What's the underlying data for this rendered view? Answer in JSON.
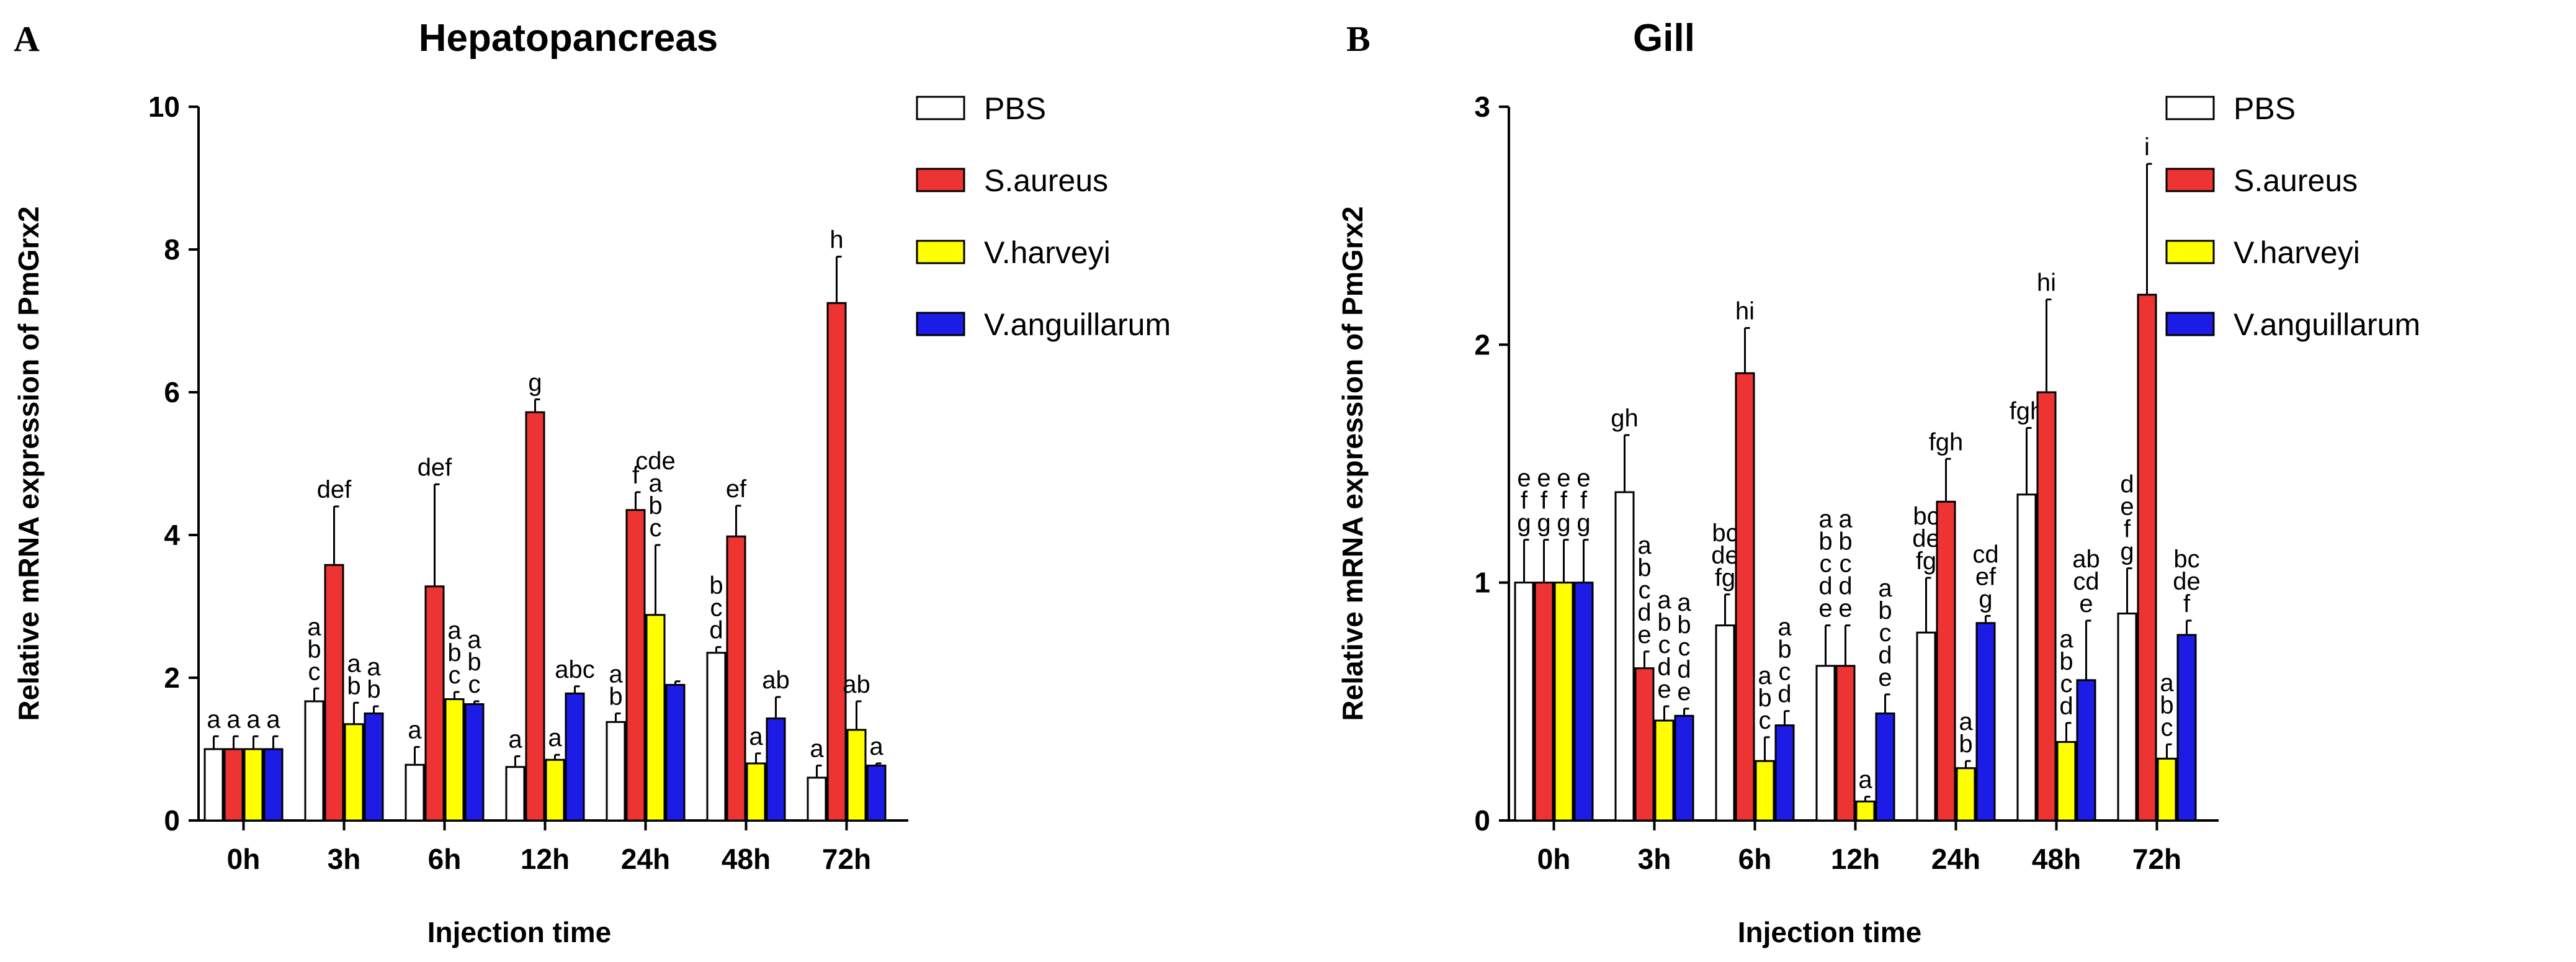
{
  "chart_data": [
    {
      "panel": "A",
      "type": "bar",
      "title": "Hepatopancreas",
      "xlabel": "Injection time",
      "ylabel": "Relative mRNA expression of PmGrx2",
      "ylim": [
        0,
        10
      ],
      "yticks": [
        0,
        2,
        4,
        6,
        8,
        10
      ],
      "categories": [
        "0h",
        "3h",
        "6h",
        "12h",
        "24h",
        "48h",
        "72h"
      ],
      "legend": "top-right",
      "series": [
        {
          "name": "PBS",
          "color": "#ffffff",
          "values": [
            1.0,
            1.67,
            0.78,
            0.75,
            1.38,
            2.35,
            0.6
          ],
          "errors": [
            0.18,
            0.18,
            0.25,
            0.15,
            0.12,
            0.08,
            0.17
          ],
          "labels": [
            [
              "a"
            ],
            [
              "a",
              "b",
              "c"
            ],
            [
              "a"
            ],
            [
              "a"
            ],
            [
              "a",
              "b"
            ],
            [
              "b",
              "c",
              "d"
            ],
            [
              "a"
            ]
          ]
        },
        {
          "name": "S.aureus",
          "color": "#ee3333",
          "values": [
            1.0,
            3.58,
            3.28,
            5.72,
            4.35,
            3.98,
            7.25
          ],
          "errors": [
            0.18,
            0.82,
            1.43,
            0.18,
            0.25,
            0.43,
            0.65
          ],
          "labels": [
            [
              "a"
            ],
            [
              "def"
            ],
            [
              "def"
            ],
            [
              "g"
            ],
            [
              "f"
            ],
            [
              "ef"
            ],
            [
              "h"
            ]
          ]
        },
        {
          "name": "V.harveyi",
          "color": "#ffff00",
          "values": [
            1.0,
            1.35,
            1.7,
            0.85,
            2.88,
            0.8,
            1.27
          ],
          "errors": [
            0.18,
            0.3,
            0.1,
            0.07,
            0.98,
            0.14,
            0.4
          ],
          "labels": [
            [
              "a"
            ],
            [
              "a",
              "b"
            ],
            [
              "a",
              "b",
              "c"
            ],
            [
              "a"
            ],
            [
              "cde",
              "a",
              "b",
              "c"
            ],
            [
              "a"
            ],
            [
              "ab"
            ]
          ]
        },
        {
          "name": "V.anguillarum",
          "color": "#1c1ce6",
          "values": [
            1.0,
            1.5,
            1.63,
            1.78,
            1.9,
            1.43,
            0.77
          ],
          "errors": [
            0.18,
            0.1,
            0.04,
            0.1,
            0.05,
            0.3,
            0.03
          ],
          "labels": [
            [
              "a"
            ],
            [
              "a",
              "b"
            ],
            [
              "a",
              "b",
              "c"
            ],
            [
              "abc"
            ],
            [],
            [
              "ab"
            ],
            [
              "a"
            ]
          ]
        }
      ]
    },
    {
      "panel": "B",
      "type": "bar",
      "title": "Gill",
      "xlabel": "Injection time",
      "ylabel": "Relative mRNA expression of PmGrx2",
      "ylim": [
        0,
        3
      ],
      "yticks": [
        0,
        1,
        2,
        3
      ],
      "categories": [
        "0h",
        "3h",
        "6h",
        "12h",
        "24h",
        "48h",
        "72h"
      ],
      "legend": "top-right",
      "series": [
        {
          "name": "PBS",
          "color": "#ffffff",
          "values": [
            1.0,
            1.38,
            0.82,
            0.65,
            0.79,
            1.37,
            0.87
          ],
          "errors": [
            0.18,
            0.24,
            0.13,
            0.17,
            0.23,
            0.28,
            0.19
          ],
          "labels": [
            [
              "e",
              "f",
              "g"
            ],
            [
              "gh"
            ],
            [
              "bc",
              "de",
              "fg"
            ],
            [
              "a",
              "b",
              "c",
              "d",
              "e"
            ],
            [
              "bc",
              "de",
              "fg"
            ],
            [
              "fgh"
            ],
            [
              "d",
              "e",
              "f",
              "g"
            ]
          ]
        },
        {
          "name": "S.aureus",
          "color": "#ee3333",
          "values": [
            1.0,
            0.64,
            1.88,
            0.65,
            1.34,
            1.8,
            2.21
          ],
          "errors": [
            0.18,
            0.07,
            0.19,
            0.17,
            0.18,
            0.39,
            0.55
          ],
          "labels": [
            [
              "e",
              "f",
              "g"
            ],
            [
              "a",
              "b",
              "c",
              "d",
              "e"
            ],
            [
              "hi"
            ],
            [
              "a",
              "b",
              "c",
              "d",
              "e"
            ],
            [
              "fgh"
            ],
            [
              "hi"
            ],
            [
              "i"
            ]
          ]
        },
        {
          "name": "V.harveyi",
          "color": "#ffff00",
          "values": [
            1.0,
            0.42,
            0.25,
            0.08,
            0.22,
            0.33,
            0.26
          ],
          "errors": [
            0.18,
            0.06,
            0.1,
            0.02,
            0.03,
            0.08,
            0.06
          ],
          "labels": [
            [
              "e",
              "f",
              "g"
            ],
            [
              "a",
              "b",
              "c",
              "d",
              "e"
            ],
            [
              "a",
              "b",
              "c"
            ],
            [
              "a"
            ],
            [
              "a",
              "b"
            ],
            [
              "a",
              "b",
              "c",
              "d"
            ],
            [
              "a",
              "b",
              "c"
            ]
          ]
        },
        {
          "name": "V.anguillarum",
          "color": "#1c1ce6",
          "values": [
            1.0,
            0.44,
            0.4,
            0.45,
            0.83,
            0.59,
            0.78
          ],
          "errors": [
            0.18,
            0.03,
            0.06,
            0.08,
            0.03,
            0.25,
            0.06
          ],
          "labels": [
            [
              "e",
              "f",
              "g"
            ],
            [
              "a",
              "b",
              "c",
              "d",
              "e"
            ],
            [
              "a",
              "b",
              "c",
              "d"
            ],
            [
              "a",
              "b",
              "c",
              "d",
              "e"
            ],
            [
              "cd",
              "ef",
              "g"
            ],
            [
              "ab",
              "cd",
              "e"
            ],
            [
              "bc",
              "de",
              "f"
            ]
          ]
        }
      ]
    }
  ]
}
